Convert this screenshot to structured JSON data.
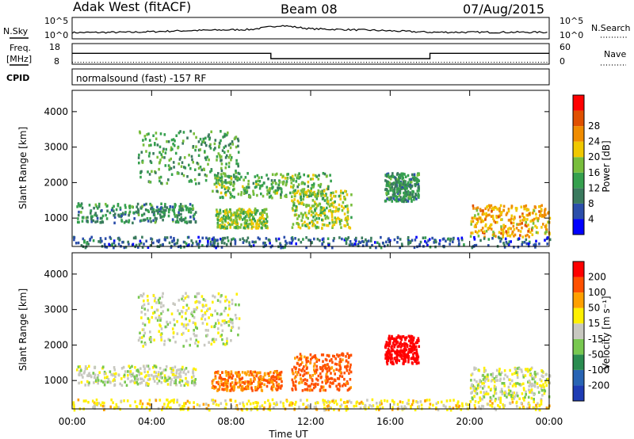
{
  "header": {
    "station": "Adak West (fitACF)",
    "beam": "Beam 08",
    "date": "07/Aug/2015"
  },
  "labels": {
    "nsky": "N.Sky",
    "nsearch": "N.Search",
    "freq": "Freq.",
    "freq_unit": "[MHz]",
    "nave": "Nave",
    "cpid": "CPID",
    "cpid_text": "normalsound (fast) -157 RF",
    "y_axis": "Slant Range [km]",
    "x_axis": "Time UT",
    "power_label": "Power [dB]",
    "velocity_label": "Velocity [m s⁻¹]"
  },
  "noise_ticks": {
    "left": [
      "10^5",
      "10^0"
    ],
    "right": [
      "10^5",
      "10^0"
    ]
  },
  "freq_ticks": {
    "left": [
      "18",
      "8"
    ],
    "right": [
      "60",
      "0"
    ]
  },
  "chart_data": [
    {
      "type": "line",
      "title": "Noise",
      "series": [
        {
          "name": "N.Sky",
          "x": [
            0,
            3,
            6,
            9,
            10.5,
            12,
            15,
            18,
            21,
            24
          ],
          "y": [
            0.9,
            1.0,
            1.5,
            1.8,
            3.0,
            2.0,
            1.6,
            1.0,
            1.0,
            1.0
          ]
        }
      ]
    },
    {
      "type": "line",
      "title": "Frequency",
      "series": [
        {
          "name": "Freq.",
          "x": [
            0,
            10.0,
            10.0,
            18.0,
            18.0,
            24
          ],
          "y": [
            13.3,
            13.3,
            10.5,
            10.5,
            13.3,
            13.3
          ]
        },
        {
          "name": "Nave",
          "x": [
            0,
            24
          ],
          "y": [
            8.6,
            8.6
          ]
        }
      ]
    },
    {
      "type": "heatmap",
      "title": "Power [dB]",
      "xlabel": "",
      "ylabel": "Slant Range [km]",
      "xlim": [
        0,
        24
      ],
      "ylim": [
        200,
        4600
      ],
      "yticks": [
        1000,
        2000,
        3000,
        4000
      ],
      "colorbar": {
        "label": "Power [dB]",
        "ticks": [
          4,
          8,
          12,
          16,
          20,
          24,
          28
        ],
        "colors": [
          "#0000ff",
          "#2b4eaa",
          "#3a7a5e",
          "#35a04e",
          "#78be3c",
          "#f0c800",
          "#f08c00",
          "#e05000",
          "#ff0000"
        ]
      },
      "regions": [
        {
          "t": [
            0.2,
            6.2
          ],
          "r": [
            900,
            1450
          ],
          "power": 12
        },
        {
          "t": [
            3.3,
            8.4
          ],
          "r": [
            2000,
            3500
          ],
          "power": 14
        },
        {
          "t": [
            7.0,
            13.0
          ],
          "r": [
            1600,
            2300
          ],
          "power": 16
        },
        {
          "t": [
            7.2,
            9.8
          ],
          "r": [
            750,
            1300
          ],
          "power": 18
        },
        {
          "t": [
            11.0,
            14.0
          ],
          "r": [
            750,
            1800
          ],
          "power": 19
        },
        {
          "t": [
            15.7,
            17.4
          ],
          "r": [
            1500,
            2300
          ],
          "power": 12
        },
        {
          "t": [
            20.0,
            24.0
          ],
          "r": [
            500,
            1400
          ],
          "power": 24
        },
        {
          "t": [
            0.0,
            24.0
          ],
          "r": [
            200,
            500
          ],
          "power": 8
        }
      ]
    },
    {
      "type": "heatmap",
      "title": "Velocity [m s⁻¹]",
      "xlabel": "Time UT",
      "ylabel": "Slant Range [km]",
      "xlim": [
        0,
        24
      ],
      "ylim": [
        200,
        4600
      ],
      "xticks": [
        "00:00",
        "04:00",
        "08:00",
        "12:00",
        "16:00",
        "20:00",
        "00:00"
      ],
      "yticks": [
        1000,
        2000,
        3000,
        4000
      ],
      "colorbar": {
        "label": "Velocity [m s⁻¹]",
        "ticks": [
          200,
          100,
          50,
          15,
          -15,
          -50,
          -100,
          -200
        ],
        "colors": [
          "#1e3cb4",
          "#2864b4",
          "#2a8c50",
          "#78c850",
          "#c8c8c0",
          "#fff000",
          "#ffa000",
          "#ff5000",
          "#ff0000"
        ]
      },
      "regions": [
        {
          "t": [
            0.2,
            6.2
          ],
          "r": [
            900,
            1450
          ],
          "velocity": 0
        },
        {
          "t": [
            3.3,
            8.4
          ],
          "r": [
            2000,
            3500
          ],
          "velocity": 0
        },
        {
          "t": [
            7.0,
            10.5
          ],
          "r": [
            750,
            1300
          ],
          "velocity": -100
        },
        {
          "t": [
            11.0,
            14.0
          ],
          "r": [
            750,
            1800
          ],
          "velocity": -120
        },
        {
          "t": [
            15.7,
            17.4
          ],
          "r": [
            1500,
            2300
          ],
          "velocity": -180
        },
        {
          "t": [
            20.0,
            24.0
          ],
          "r": [
            500,
            1400
          ],
          "velocity": 0
        },
        {
          "t": [
            0.0,
            24.0
          ],
          "r": [
            200,
            500
          ],
          "velocity": -30
        }
      ]
    }
  ]
}
